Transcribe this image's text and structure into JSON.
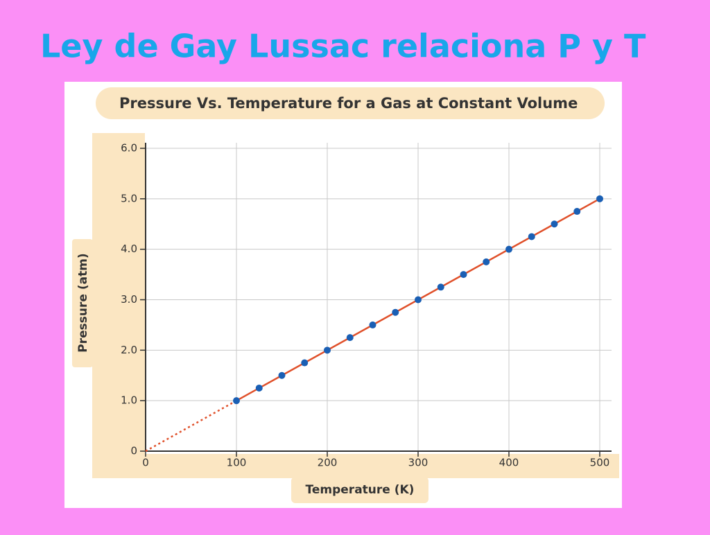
{
  "slide_title": "Ley de Gay Lussac relaciona P y T",
  "chart_data": {
    "type": "scatter",
    "title": "Pressure Vs. Temperature for a Gas at Constant Volume",
    "x_label": "Temperature (K)",
    "y_label": "Pressure (atm)",
    "x": [
      100,
      125,
      150,
      175,
      200,
      225,
      250,
      275,
      300,
      325,
      350,
      375,
      400,
      425,
      450,
      475,
      500
    ],
    "values": [
      1.0,
      1.25,
      1.5,
      1.75,
      2.0,
      2.25,
      2.5,
      2.75,
      3.0,
      3.25,
      3.5,
      3.75,
      4.0,
      4.25,
      4.5,
      4.75,
      5.0
    ],
    "color": "#1a5fb4",
    "fit_line": {
      "x": [
        0,
        100,
        500
      ],
      "values": [
        0,
        1,
        5
      ],
      "color": "#e0502a"
    },
    "xlim": [
      0,
      500
    ],
    "ylim": [
      0,
      6
    ],
    "xticks": [
      0,
      100,
      200,
      300,
      400,
      500
    ],
    "yticks": [
      0,
      {
        "value": 1,
        "label": "1.0"
      },
      {
        "value": 2,
        "label": "2.0"
      },
      {
        "value": 3,
        "label": "3.0"
      },
      {
        "value": 4,
        "label": "4.0"
      },
      {
        "value": 5,
        "label": "5.0"
      },
      {
        "value": 6,
        "label": "6.0"
      }
    ],
    "grid": true
  }
}
